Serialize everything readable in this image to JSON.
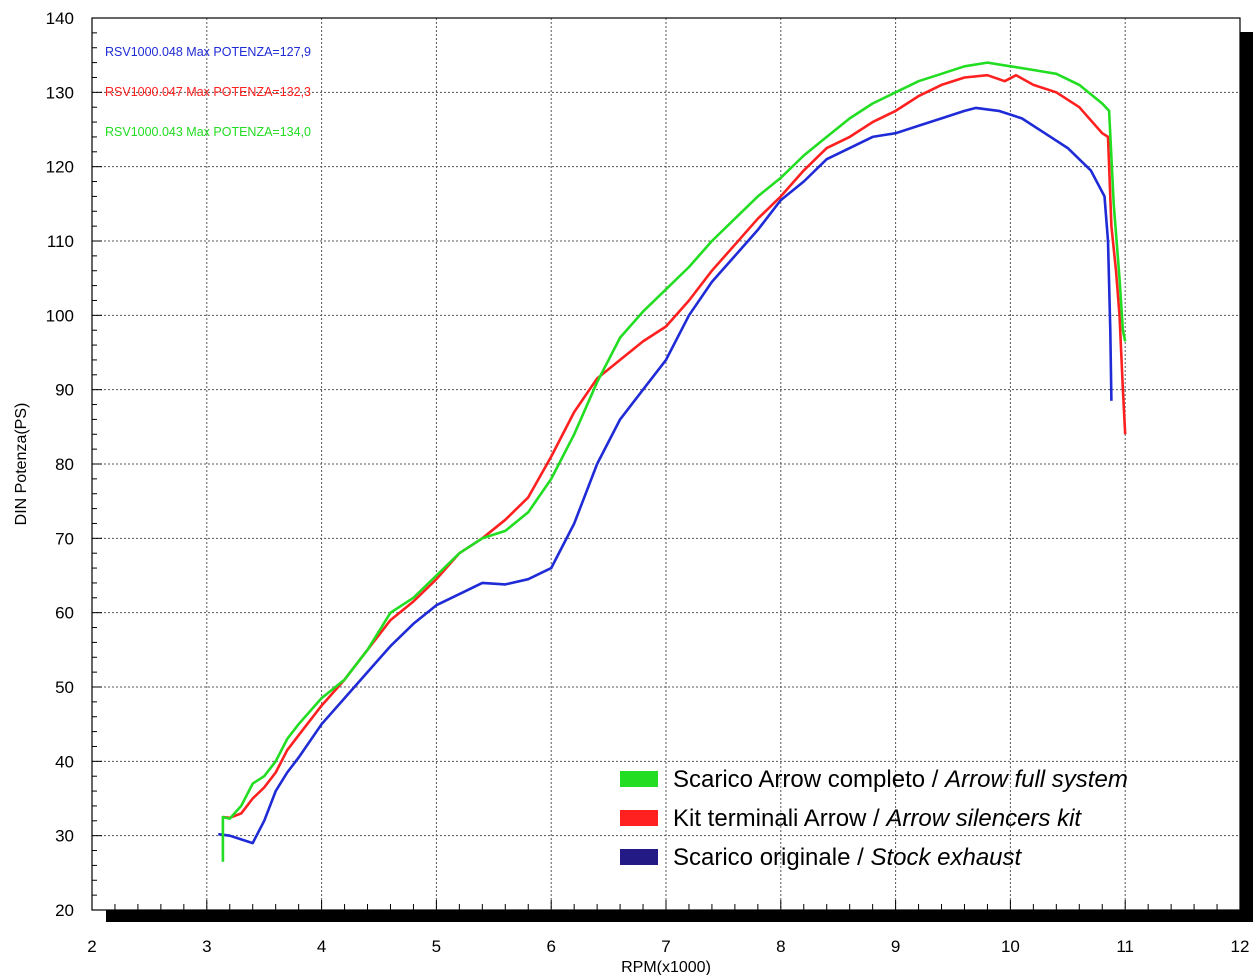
{
  "chart_data": {
    "type": "line",
    "xlabel": "RPM(x1000)",
    "ylabel": "DIN Potenza(PS)",
    "xlim": [
      2,
      12
    ],
    "ylim": [
      20,
      140
    ],
    "x_ticks": [
      "2",
      "3",
      "4",
      "5",
      "6",
      "7",
      "8",
      "9",
      "10",
      "11",
      "12"
    ],
    "y_ticks": [
      "20",
      "30",
      "40",
      "50",
      "60",
      "70",
      "80",
      "90",
      "100",
      "110",
      "120",
      "130",
      "140"
    ],
    "grid": true,
    "legend_position": "bottom-right",
    "annotations": [
      {
        "text": "RSV1000.048  Max POTENZA=127,9",
        "color": "#1f2bd6"
      },
      {
        "text": "RSV1000.047  Max POTENZA=132,3",
        "color": "#ff2020"
      },
      {
        "text": "RSV1000.043  Max POTENZA=134,0",
        "color": "#22dd22"
      }
    ],
    "series": [
      {
        "name": "Scarico Arrow completo",
        "name_italic": "Arrow full system",
        "color": "#22dd22",
        "points": [
          [
            3.14,
            26.5
          ],
          [
            3.14,
            32.5
          ],
          [
            3.2,
            32.3
          ],
          [
            3.3,
            34
          ],
          [
            3.4,
            37
          ],
          [
            3.5,
            38
          ],
          [
            3.6,
            40
          ],
          [
            3.7,
            43
          ],
          [
            3.8,
            45
          ],
          [
            4.0,
            48.5
          ],
          [
            4.2,
            51
          ],
          [
            4.4,
            55
          ],
          [
            4.6,
            60
          ],
          [
            4.8,
            62
          ],
          [
            5.0,
            65
          ],
          [
            5.2,
            68
          ],
          [
            5.4,
            70
          ],
          [
            5.6,
            71
          ],
          [
            5.8,
            73.5
          ],
          [
            6.0,
            78
          ],
          [
            6.2,
            84
          ],
          [
            6.4,
            91
          ],
          [
            6.6,
            97
          ],
          [
            6.8,
            100.5
          ],
          [
            7.0,
            103.5
          ],
          [
            7.2,
            106.5
          ],
          [
            7.4,
            110
          ],
          [
            7.6,
            113
          ],
          [
            7.8,
            116
          ],
          [
            8.0,
            118.5
          ],
          [
            8.2,
            121.5
          ],
          [
            8.4,
            124
          ],
          [
            8.6,
            126.5
          ],
          [
            8.8,
            128.5
          ],
          [
            9.0,
            130
          ],
          [
            9.2,
            131.5
          ],
          [
            9.4,
            132.5
          ],
          [
            9.6,
            133.5
          ],
          [
            9.8,
            134
          ],
          [
            10.0,
            133.5
          ],
          [
            10.2,
            133
          ],
          [
            10.4,
            132.5
          ],
          [
            10.6,
            131
          ],
          [
            10.8,
            128.5
          ],
          [
            10.86,
            127.5
          ],
          [
            10.9,
            115
          ],
          [
            10.95,
            105
          ],
          [
            10.98,
            98
          ],
          [
            11.0,
            96.5
          ]
        ]
      },
      {
        "name": "Kit terminali Arrow",
        "name_italic": "Arrow silencers kit",
        "color": "#ff2020",
        "points": [
          [
            3.14,
            32.5
          ],
          [
            3.2,
            32.4
          ],
          [
            3.3,
            33
          ],
          [
            3.4,
            35
          ],
          [
            3.5,
            36.5
          ],
          [
            3.6,
            38.5
          ],
          [
            3.7,
            41.5
          ],
          [
            3.8,
            43.5
          ],
          [
            4.0,
            47.5
          ],
          [
            4.2,
            51
          ],
          [
            4.4,
            55
          ],
          [
            4.6,
            59
          ],
          [
            4.8,
            61.5
          ],
          [
            5.0,
            64.5
          ],
          [
            5.2,
            68
          ],
          [
            5.4,
            70
          ],
          [
            5.6,
            72.5
          ],
          [
            5.8,
            75.5
          ],
          [
            6.0,
            81
          ],
          [
            6.2,
            87
          ],
          [
            6.4,
            91.5
          ],
          [
            6.6,
            94
          ],
          [
            6.8,
            96.5
          ],
          [
            7.0,
            98.5
          ],
          [
            7.2,
            102
          ],
          [
            7.4,
            106
          ],
          [
            7.6,
            109.5
          ],
          [
            7.8,
            113
          ],
          [
            8.0,
            116
          ],
          [
            8.2,
            119.5
          ],
          [
            8.4,
            122.5
          ],
          [
            8.6,
            124
          ],
          [
            8.8,
            126
          ],
          [
            9.0,
            127.5
          ],
          [
            9.2,
            129.5
          ],
          [
            9.4,
            131
          ],
          [
            9.6,
            132
          ],
          [
            9.8,
            132.3
          ],
          [
            9.95,
            131.5
          ],
          [
            10.05,
            132.3
          ],
          [
            10.2,
            131
          ],
          [
            10.4,
            130
          ],
          [
            10.6,
            128
          ],
          [
            10.8,
            124.5
          ],
          [
            10.85,
            124
          ],
          [
            10.88,
            112
          ],
          [
            10.92,
            106
          ],
          [
            10.95,
            100
          ],
          [
            10.98,
            90
          ],
          [
            11.0,
            84
          ]
        ]
      },
      {
        "name": "Scarico originale",
        "name_italic": "Stock exhaust",
        "color": "#1f2bd6",
        "points": [
          [
            3.1,
            30.2
          ],
          [
            3.2,
            30
          ],
          [
            3.3,
            29.5
          ],
          [
            3.4,
            29
          ],
          [
            3.5,
            32
          ],
          [
            3.6,
            36
          ],
          [
            3.7,
            38.5
          ],
          [
            3.8,
            40.5
          ],
          [
            4.0,
            45
          ],
          [
            4.2,
            48.5
          ],
          [
            4.4,
            52
          ],
          [
            4.6,
            55.5
          ],
          [
            4.8,
            58.5
          ],
          [
            5.0,
            61
          ],
          [
            5.2,
            62.5
          ],
          [
            5.4,
            64
          ],
          [
            5.6,
            63.8
          ],
          [
            5.8,
            64.5
          ],
          [
            6.0,
            66
          ],
          [
            6.2,
            72
          ],
          [
            6.4,
            80
          ],
          [
            6.6,
            86
          ],
          [
            6.8,
            90
          ],
          [
            7.0,
            94
          ],
          [
            7.2,
            100
          ],
          [
            7.4,
            104.5
          ],
          [
            7.6,
            108
          ],
          [
            7.8,
            111.5
          ],
          [
            8.0,
            115.5
          ],
          [
            8.2,
            118
          ],
          [
            8.4,
            121
          ],
          [
            8.6,
            122.5
          ],
          [
            8.8,
            124
          ],
          [
            9.0,
            124.5
          ],
          [
            9.2,
            125.5
          ],
          [
            9.4,
            126.5
          ],
          [
            9.6,
            127.5
          ],
          [
            9.7,
            127.9
          ],
          [
            9.9,
            127.5
          ],
          [
            10.1,
            126.5
          ],
          [
            10.3,
            124.5
          ],
          [
            10.5,
            122.5
          ],
          [
            10.7,
            119.5
          ],
          [
            10.82,
            116
          ],
          [
            10.85,
            110
          ],
          [
            10.87,
            98
          ],
          [
            10.88,
            88.5
          ]
        ]
      }
    ]
  }
}
